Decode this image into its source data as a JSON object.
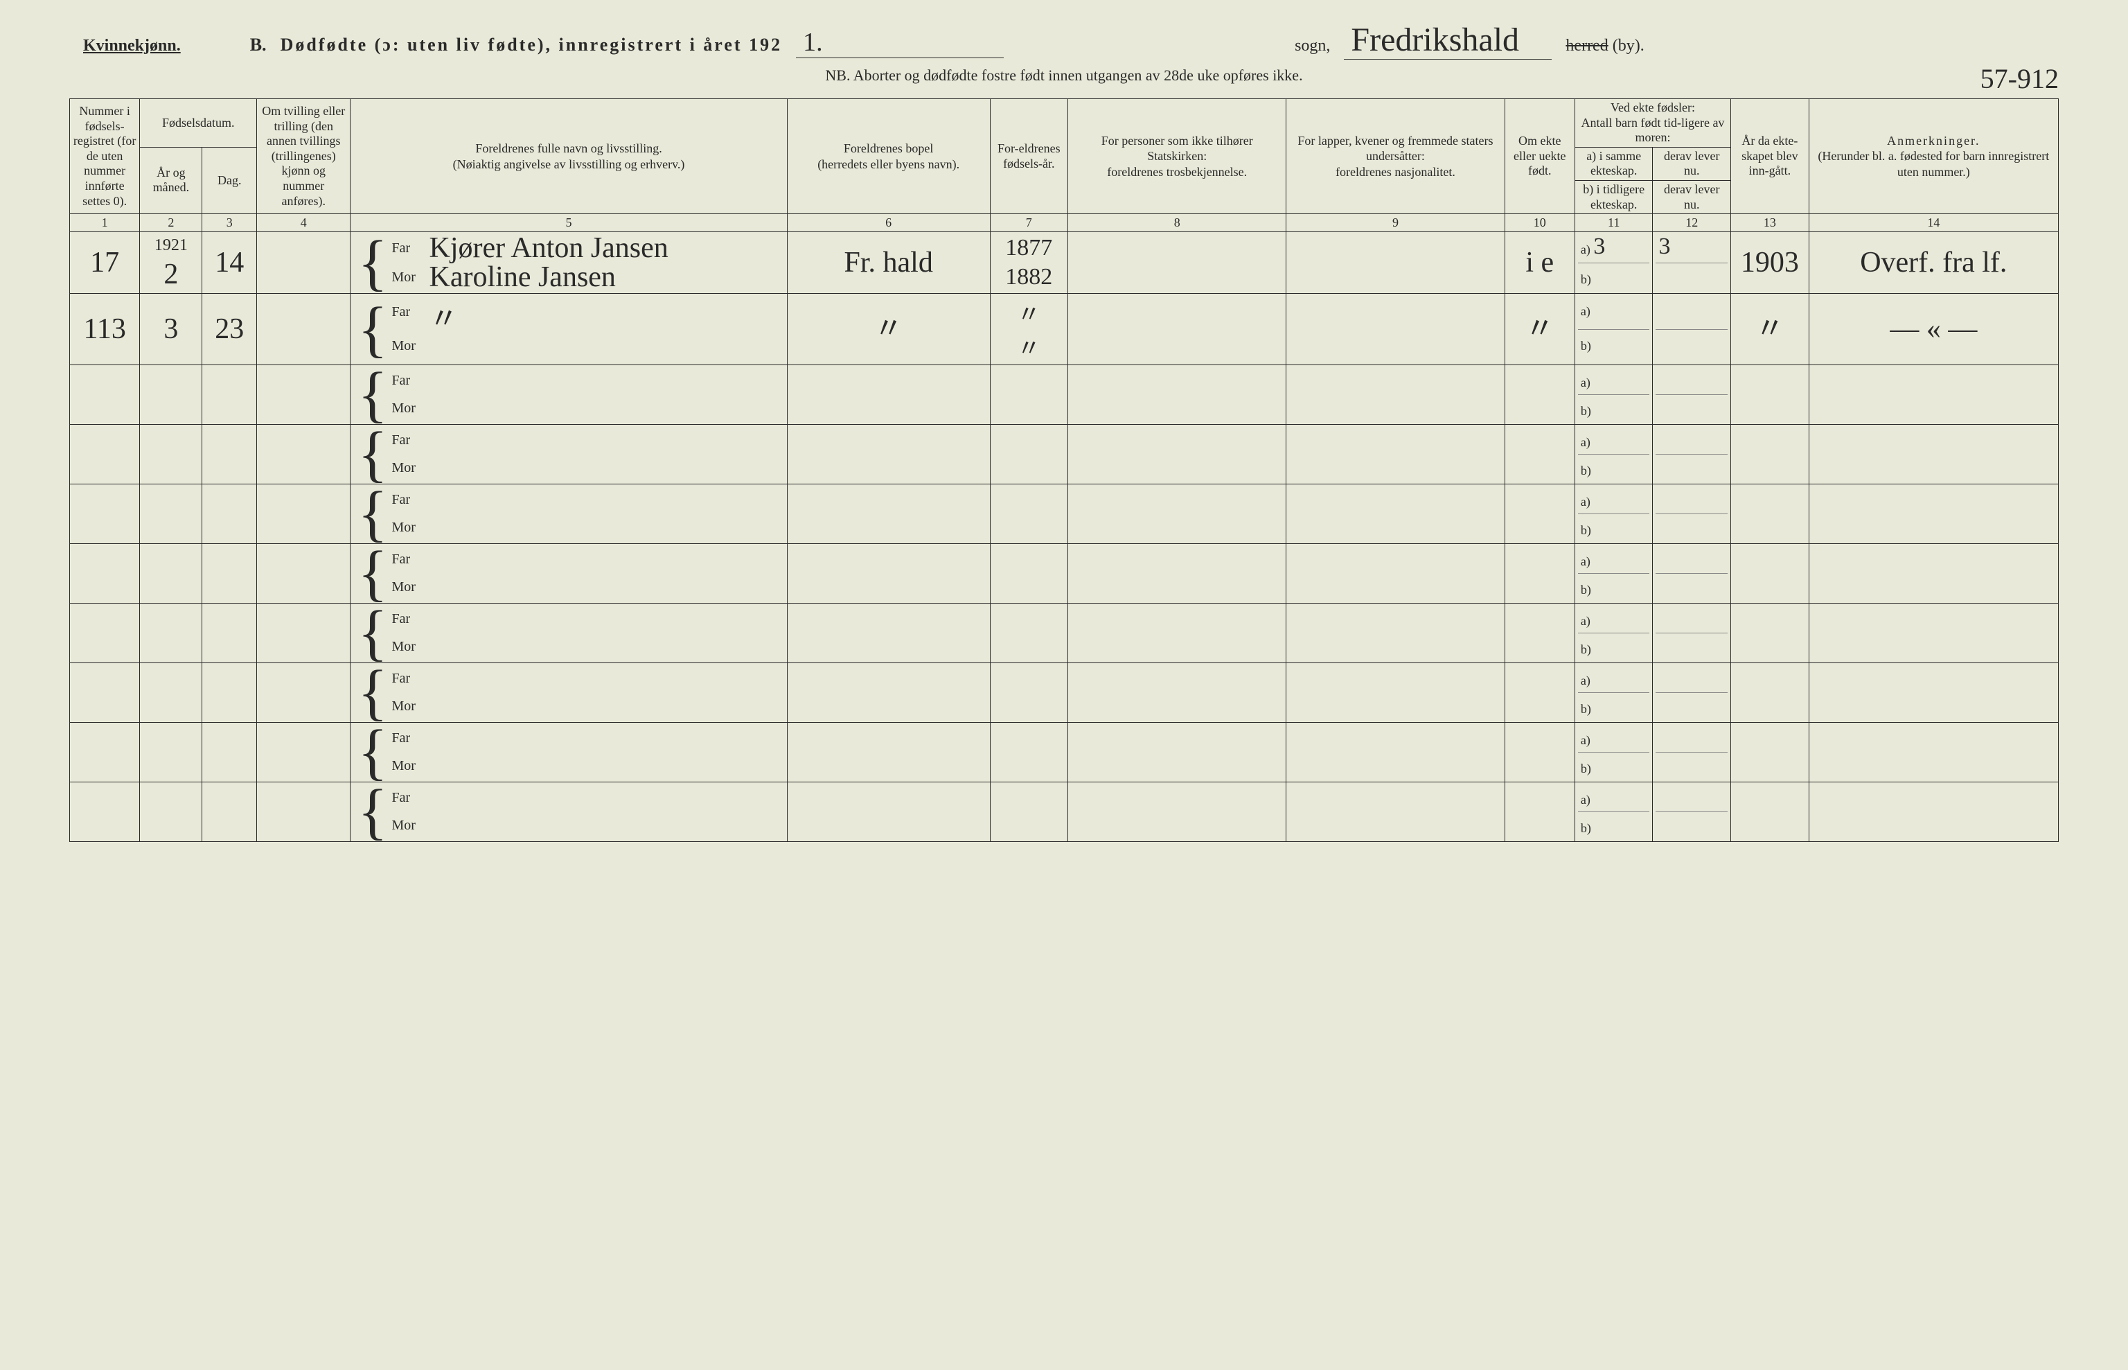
{
  "header": {
    "kvinnekjonn": "Kvinnekjønn.",
    "section_b": "B.",
    "title": "Dødfødte (ɔ: uten liv fødte), innregistrert i året 192",
    "year_suffix": "1.",
    "sogn_label": "sogn,",
    "parish_handwritten": "Fredrikshald",
    "herred_label": "herred",
    "by_label": "(by).",
    "nb_line": "NB.  Aborter og dødfødte fostre født innen utgangen av 28de uke opføres ikke.",
    "corner_note": "57-912"
  },
  "columns": {
    "c1": "Nummer i fødsels-registret (for de uten nummer innførte settes 0).",
    "c2_group": "Fødselsdatum.",
    "c2a": "År og måned.",
    "c2b": "Dag.",
    "c4": "Om tvilling eller trilling (den annen tvillings (trillingenes) kjønn og nummer anføres).",
    "c5_top": "Foreldrenes fulle navn og livsstilling.",
    "c5_sub": "(Nøiaktig angivelse av livsstilling og erhverv.)",
    "c6_top": "Foreldrenes bopel",
    "c6_sub": "(herredets eller byens navn).",
    "c7": "For-eldrenes fødsels-år.",
    "c8_top": "For personer som ikke tilhører Statskirken:",
    "c8_sub": "foreldrenes trosbekjennelse.",
    "c9_top": "For lapper, kvener og fremmede staters undersåtter:",
    "c9_sub": "foreldrenes nasjonalitet.",
    "c10": "Om ekte eller uekte født.",
    "c11_12_group_top": "Ved ekte fødsler:",
    "c11_12_group_sub": "Antall barn født tid-ligere av moren:",
    "c11a": "a) i samme ekteskap.",
    "c11b": "b) i tidligere ekteskap.",
    "c12a": "derav lever nu.",
    "c12b": "derav lever nu.",
    "c13": "År da ekte-skapet blev inn-gått.",
    "c14_top": "Anmerkninger.",
    "c14_sub": "(Herunder bl. a. fødested for barn innregistrert uten nummer.)",
    "far_label": "Far",
    "mor_label": "Mor",
    "a_label": "a)",
    "b_label": "b)"
  },
  "col_nums": [
    "1",
    "2",
    "3",
    "4",
    "5",
    "6",
    "7",
    "8",
    "9",
    "10",
    "11",
    "12",
    "13",
    "14"
  ],
  "rows": [
    {
      "c1": "17",
      "c2": "2",
      "c2_top": "1921",
      "c3": "14",
      "c4": "",
      "far_name": "Kjører Anton Jansen",
      "mor_name": "Karoline Jansen",
      "c6": "Fr. hald",
      "c7_far": "1877",
      "c7_mor": "1882",
      "c8": "",
      "c9": "",
      "c10": "i e",
      "c11a": "3",
      "c11b": "",
      "c12a": "3",
      "c12b": "",
      "c13": "1903",
      "c14": "Overf. fra lf."
    },
    {
      "c1": "113",
      "c2": "3",
      "c3": "23",
      "c4": "",
      "far_name": "〃",
      "mor_name": "",
      "c6": "〃",
      "c7_far": "〃",
      "c7_mor": "〃",
      "c8": "",
      "c9": "",
      "c10": "〃",
      "c11a": "",
      "c11b": "",
      "c12a": "",
      "c12b": "",
      "c13": "〃",
      "c14": "— « —"
    }
  ],
  "empty_row_count": 8,
  "colors": {
    "bg": "#e8e9d8",
    "ink": "#2a2a2a",
    "rule": "#2a2a2a"
  }
}
